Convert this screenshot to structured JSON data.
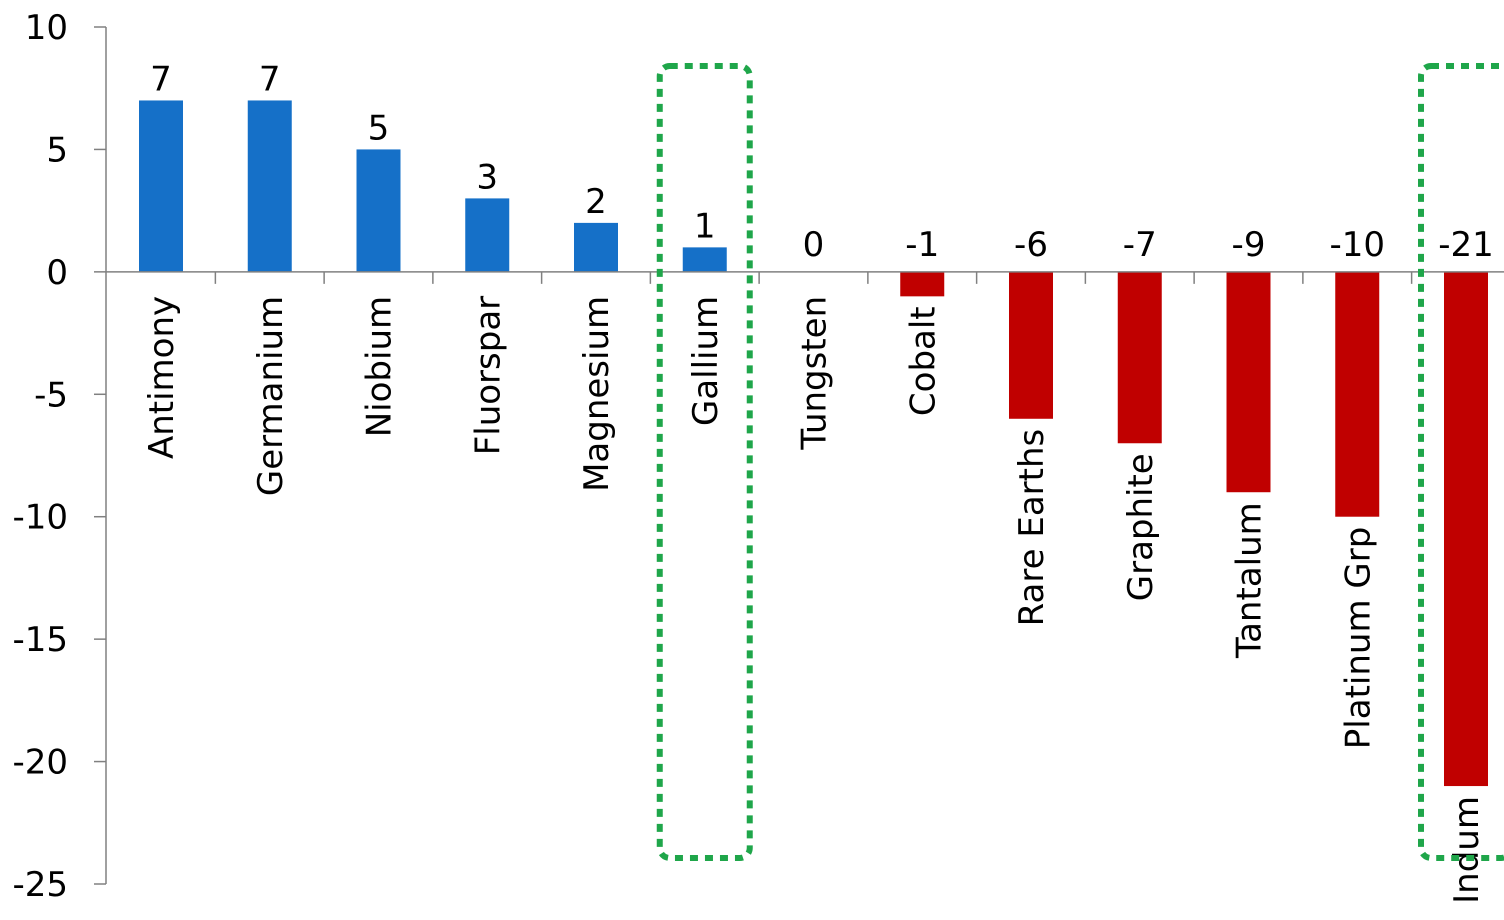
{
  "chart_data": {
    "type": "bar",
    "title": "",
    "xlabel": "",
    "ylabel": "",
    "ylim": [
      -25,
      10
    ],
    "yticks": [
      10,
      5,
      0,
      -5,
      -10,
      -15,
      -20,
      -25
    ],
    "categories": [
      "Antimony",
      "Germanium",
      "Niobium",
      "Fluorspar",
      "Magnesium",
      "Gallium",
      "Tungsten",
      "Cobalt",
      "Rare Earths",
      "Graphite",
      "Tantalum",
      "Platinum Grp",
      "Indum"
    ],
    "values": [
      7,
      7,
      5,
      3,
      2,
      1,
      0,
      -1,
      -6,
      -7,
      -9,
      -10,
      -21
    ],
    "data_labels": [
      "7",
      "7",
      "5",
      "3",
      "2",
      "1",
      "0",
      "-1",
      "-6",
      "-7",
      "-9",
      "-10",
      "-21"
    ],
    "grid": false,
    "colors": {
      "positive": "#1570C8",
      "negative": "#C00000",
      "highlight_box": "#1FA64A",
      "axis": "#808080"
    },
    "highlighted_categories": [
      "Gallium",
      "Indum"
    ]
  }
}
